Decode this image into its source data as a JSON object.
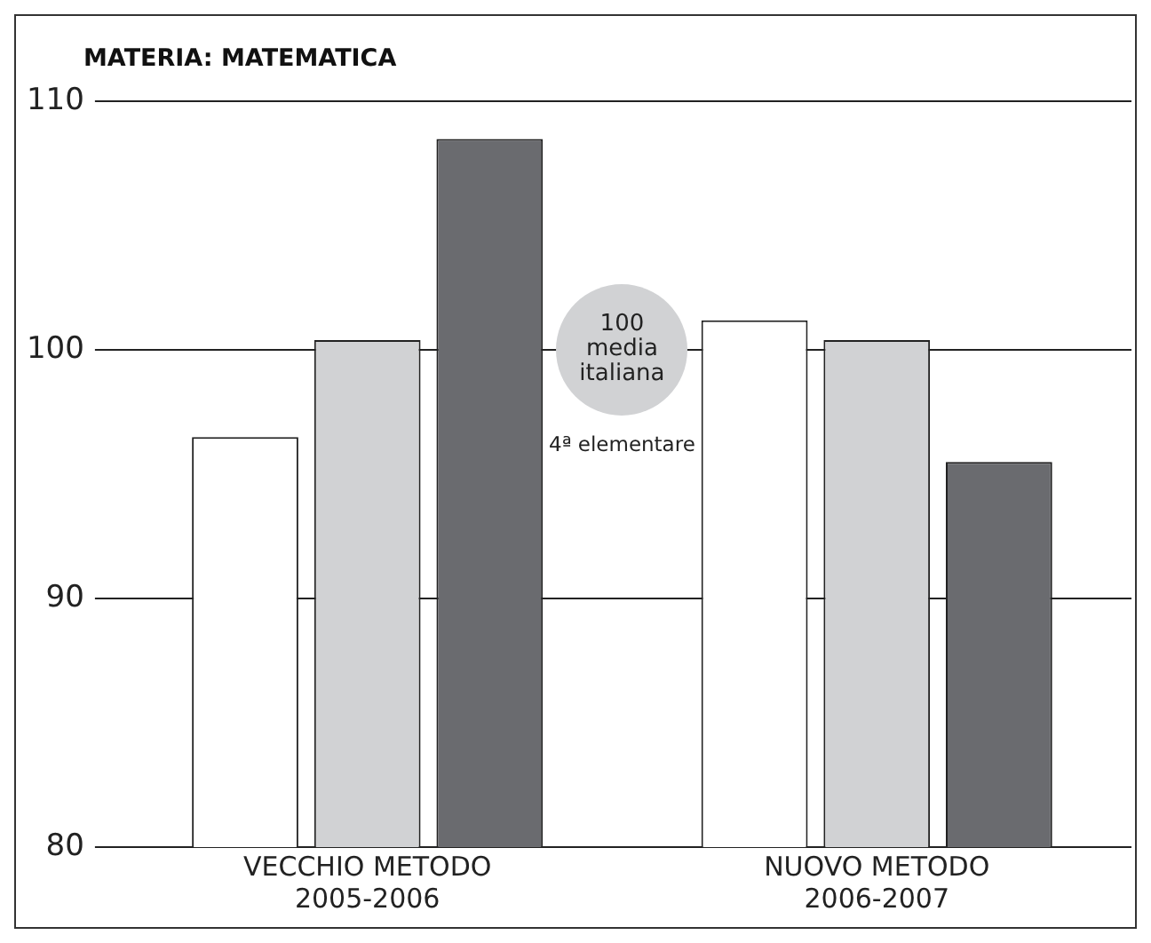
{
  "chart_data": {
    "type": "bar",
    "title": "MATERIA: MATEMATICA",
    "categories": [
      "VECCHIO METODO\n2005-2006",
      "NUOVO METODO\n2006-2007"
    ],
    "series": [
      {
        "color": "#ffffff",
        "values": [
          96.5,
          101.2
        ]
      },
      {
        "color": "#d1d2d4",
        "values": [
          100.4,
          100.4
        ]
      },
      {
        "color": "#6a6b6f",
        "values": [
          108.5,
          95.5
        ]
      }
    ],
    "ylim": [
      80,
      110
    ],
    "yticks": [
      80,
      90,
      100,
      110
    ],
    "grid": "y",
    "legend": false,
    "annotations": [
      "100 media italiana",
      "4ª elementare"
    ]
  }
}
